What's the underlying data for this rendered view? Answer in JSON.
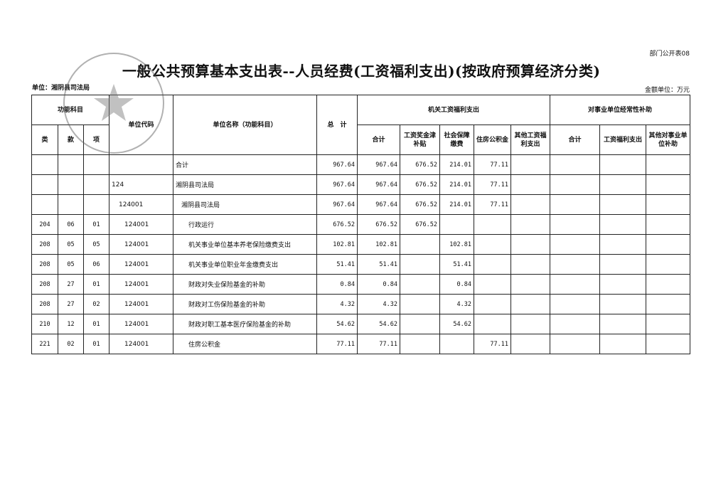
{
  "form_no": "部门公开表08",
  "title": "一般公共预算基本支出表--人员经费(工资福利支出)(按政府预算经济分类)",
  "unit_label": "单位：湘阴县司法局",
  "money_unit": "金额单位：万元",
  "headers": {
    "func_subject": "功能科目",
    "lei": "类",
    "kuan": "款",
    "xiang": "项",
    "unit_code": "单位代码",
    "unit_name": "单位名称（功能科目）",
    "total": "总　计",
    "gov_group": "机关工资福利支出",
    "gov_cols": [
      "合计",
      "工资奖金津补贴",
      "社会保障缴费",
      "住房公积金",
      "其他工资福利支出"
    ],
    "inst_group": "对事业单位经常性补助",
    "inst_cols": [
      "合计",
      "工资福利支出",
      "其他对事业单位补助"
    ]
  },
  "rows": [
    {
      "lei": "",
      "kuan": "",
      "xiang": "",
      "code": "",
      "name": "合计",
      "total": "967.64",
      "g_total": "967.64",
      "g_wage": "676.52",
      "g_social": "214.01",
      "g_housing": "77.11",
      "g_other": "",
      "i_total": "",
      "i_wage": "",
      "i_other": ""
    },
    {
      "lei": "",
      "kuan": "",
      "xiang": "",
      "code": "124",
      "name": "湘阴县司法局",
      "total": "967.64",
      "g_total": "967.64",
      "g_wage": "676.52",
      "g_social": "214.01",
      "g_housing": "77.11",
      "g_other": "",
      "i_total": "",
      "i_wage": "",
      "i_other": ""
    },
    {
      "lei": "",
      "kuan": "",
      "xiang": "",
      "code": "124001",
      "name": "湘阴县司法局",
      "total": "967.64",
      "g_total": "967.64",
      "g_wage": "676.52",
      "g_social": "214.01",
      "g_housing": "77.11",
      "g_other": "",
      "i_total": "",
      "i_wage": "",
      "i_other": ""
    },
    {
      "lei": "204",
      "kuan": "06",
      "xiang": "01",
      "code": "124001",
      "name": "行政运行",
      "total": "676.52",
      "g_total": "676.52",
      "g_wage": "676.52",
      "g_social": "",
      "g_housing": "",
      "g_other": "",
      "i_total": "",
      "i_wage": "",
      "i_other": ""
    },
    {
      "lei": "208",
      "kuan": "05",
      "xiang": "05",
      "code": "124001",
      "name": "机关事业单位基本养老保险缴费支出",
      "total": "102.81",
      "g_total": "102.81",
      "g_wage": "",
      "g_social": "102.81",
      "g_housing": "",
      "g_other": "",
      "i_total": "",
      "i_wage": "",
      "i_other": ""
    },
    {
      "lei": "208",
      "kuan": "05",
      "xiang": "06",
      "code": "124001",
      "name": "机关事业单位职业年金缴费支出",
      "total": "51.41",
      "g_total": "51.41",
      "g_wage": "",
      "g_social": "51.41",
      "g_housing": "",
      "g_other": "",
      "i_total": "",
      "i_wage": "",
      "i_other": ""
    },
    {
      "lei": "208",
      "kuan": "27",
      "xiang": "01",
      "code": "124001",
      "name": "财政对失业保险基金的补助",
      "total": "0.84",
      "g_total": "0.84",
      "g_wage": "",
      "g_social": "0.84",
      "g_housing": "",
      "g_other": "",
      "i_total": "",
      "i_wage": "",
      "i_other": ""
    },
    {
      "lei": "208",
      "kuan": "27",
      "xiang": "02",
      "code": "124001",
      "name": "财政对工伤保险基金的补助",
      "total": "4.32",
      "g_total": "4.32",
      "g_wage": "",
      "g_social": "4.32",
      "g_housing": "",
      "g_other": "",
      "i_total": "",
      "i_wage": "",
      "i_other": ""
    },
    {
      "lei": "210",
      "kuan": "12",
      "xiang": "01",
      "code": "124001",
      "name": "财政对职工基本医疗保险基金的补助",
      "total": "54.62",
      "g_total": "54.62",
      "g_wage": "",
      "g_social": "54.62",
      "g_housing": "",
      "g_other": "",
      "i_total": "",
      "i_wage": "",
      "i_other": ""
    },
    {
      "lei": "221",
      "kuan": "02",
      "xiang": "01",
      "code": "124001",
      "name": "住房公积金",
      "total": "77.11",
      "g_total": "77.11",
      "g_wage": "",
      "g_social": "",
      "g_housing": "77.11",
      "g_other": "",
      "i_total": "",
      "i_wage": "",
      "i_other": ""
    }
  ]
}
